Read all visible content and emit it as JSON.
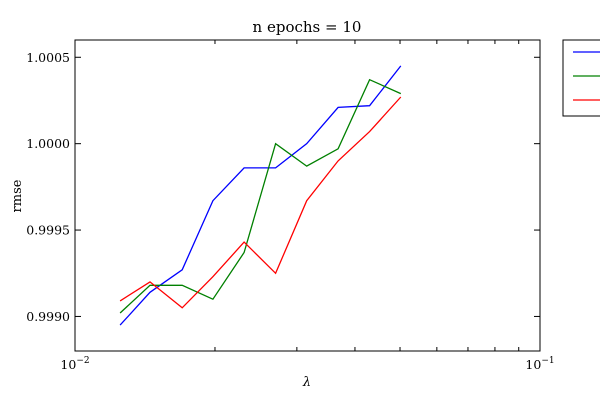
{
  "chart_data": {
    "type": "line",
    "title": "n epochs = 10",
    "xlabel": "λ",
    "ylabel": "rmse",
    "xscale": "log",
    "xlim": [
      0.01,
      0.1
    ],
    "ylim": [
      0.9988,
      1.0006
    ],
    "grid": false,
    "legend_position": "outside-right (clipped)",
    "x_ticks": [
      {
        "base": "10",
        "exp": "−2"
      },
      {
        "base": "10",
        "exp": "−1"
      }
    ],
    "y_ticks": [
      {
        "value": 0.999,
        "label": "0.9990"
      },
      {
        "value": 0.9995,
        "label": "0.9995"
      },
      {
        "value": 1.0,
        "label": "1.0000"
      },
      {
        "value": 1.0005,
        "label": "1.0005"
      }
    ],
    "x": [
      0.0125,
      0.0145,
      0.017,
      0.0198,
      0.0231,
      0.027,
      0.0315,
      0.0368,
      0.043,
      0.0502
    ],
    "series": [
      {
        "color": "#0000ff",
        "values": [
          0.99895,
          0.99914,
          0.99927,
          0.99967,
          0.99986,
          0.99986,
          1.0,
          1.00021,
          1.00022,
          1.00045
        ]
      },
      {
        "color": "#008000",
        "values": [
          0.99902,
          0.99918,
          0.99918,
          0.9991,
          0.99937,
          1.0,
          0.99987,
          0.99997,
          1.00037,
          1.00029
        ]
      },
      {
        "color": "#ff0000",
        "values": [
          0.99909,
          0.9992,
          0.99905,
          0.99923,
          0.99943,
          0.99925,
          0.99967,
          0.9999,
          1.00007,
          1.00027
        ]
      }
    ]
  }
}
